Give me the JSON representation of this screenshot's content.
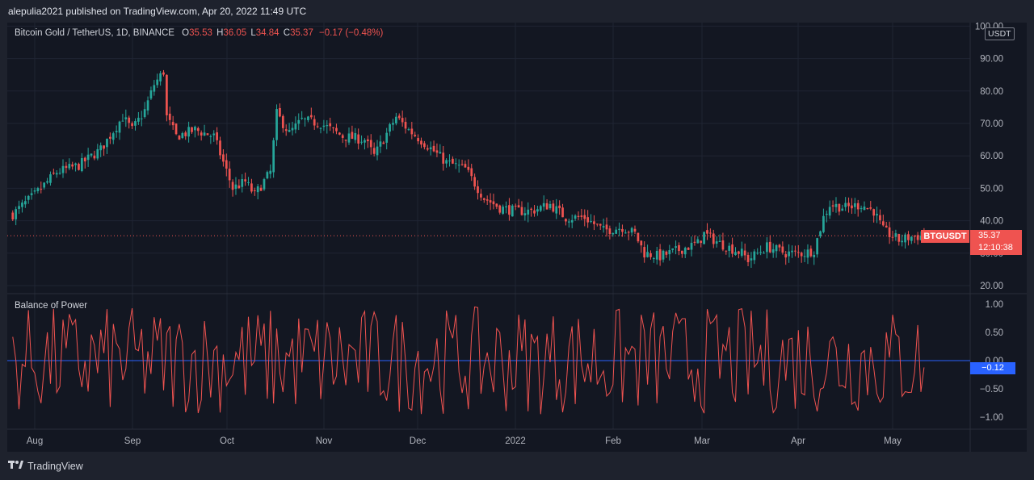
{
  "header": {
    "text": "alepulia2021 published on TradingView.com, Apr 20, 2022 11:49 UTC"
  },
  "legend": {
    "symbol": "Bitcoin Gold / TetherUS, 1D, BINANCE",
    "o_label": "O",
    "o_value": "35.53",
    "h_label": "H",
    "h_value": "36.05",
    "l_label": "L",
    "l_value": "34.84",
    "c_label": "C",
    "c_value": "35.37",
    "change": "−0.17 (−0.48%)"
  },
  "currency_badge": "USDT",
  "symbol_tag": "BTGUSDT",
  "last_price": "35.37",
  "countdown": "12:10:38",
  "indicator": {
    "title": "Balance of Power",
    "last_value": "−0.12"
  },
  "footer": {
    "logo_icon": "tradingview-logo-icon",
    "brand": "TradingView"
  },
  "colors": {
    "up": "#26a69a",
    "down": "#ef5350",
    "bop_line": "#ef5350",
    "zero_line": "#2962ff",
    "background": "#131722"
  },
  "chart_data": [
    {
      "type": "candlestick",
      "title": "Bitcoin Gold / TetherUS, 1D, BINANCE",
      "x_tick_labels": [
        "Aug",
        "Sep",
        "Oct",
        "Nov",
        "Dec",
        "2022",
        "Feb",
        "Mar",
        "Apr",
        "May"
      ],
      "y_tick_labels": [
        "100.00",
        "90.00",
        "80.00",
        "70.00",
        "60.00",
        "50.00",
        "40.00",
        "30.00",
        "20.00"
      ],
      "ylim": [
        20,
        100
      ],
      "last_close": 35.37,
      "x_start": "2021-07-25",
      "close_series": [
        [
          0,
          42
        ],
        [
          7,
          48
        ],
        [
          14,
          55
        ],
        [
          21,
          57
        ],
        [
          28,
          62
        ],
        [
          35,
          72
        ],
        [
          38,
          68
        ],
        [
          42,
          74
        ],
        [
          45,
          82
        ],
        [
          48,
          86
        ],
        [
          49,
          72
        ],
        [
          52,
          66
        ],
        [
          58,
          68
        ],
        [
          64,
          66
        ],
        [
          70,
          50
        ],
        [
          74,
          52
        ],
        [
          77,
          48
        ],
        [
          82,
          55
        ],
        [
          84,
          73
        ],
        [
          88,
          67
        ],
        [
          92,
          71
        ],
        [
          98,
          70
        ],
        [
          105,
          66
        ],
        [
          112,
          65
        ],
        [
          115,
          60
        ],
        [
          122,
          72
        ],
        [
          126,
          68
        ],
        [
          131,
          64
        ],
        [
          138,
          58
        ],
        [
          144,
          56
        ],
        [
          150,
          47
        ],
        [
          155,
          44
        ],
        [
          160,
          43
        ],
        [
          165,
          43
        ],
        [
          171,
          45
        ],
        [
          176,
          41
        ],
        [
          182,
          41
        ],
        [
          188,
          37
        ],
        [
          194,
          38
        ],
        [
          198,
          36
        ],
        [
          201,
          30
        ],
        [
          206,
          29
        ],
        [
          212,
          31
        ],
        [
          218,
          33
        ],
        [
          220,
          36
        ],
        [
          225,
          33
        ],
        [
          232,
          30
        ],
        [
          234,
          28
        ],
        [
          240,
          32
        ],
        [
          246,
          30
        ],
        [
          252,
          30
        ],
        [
          255,
          31
        ],
        [
          258,
          41
        ],
        [
          260,
          45
        ],
        [
          265,
          44
        ],
        [
          270,
          45
        ],
        [
          274,
          43
        ],
        [
          277,
          37
        ],
        [
          282,
          34
        ],
        [
          286,
          35
        ],
        [
          290,
          35.37
        ]
      ],
      "series": [
        {
          "name": "Balance of Power",
          "ylim": [
            -1,
            1
          ],
          "ticks": [
            "1.00",
            "0.50",
            "0.00",
            "−0.50",
            "−1.00"
          ],
          "last": -0.12
        }
      ]
    }
  ]
}
